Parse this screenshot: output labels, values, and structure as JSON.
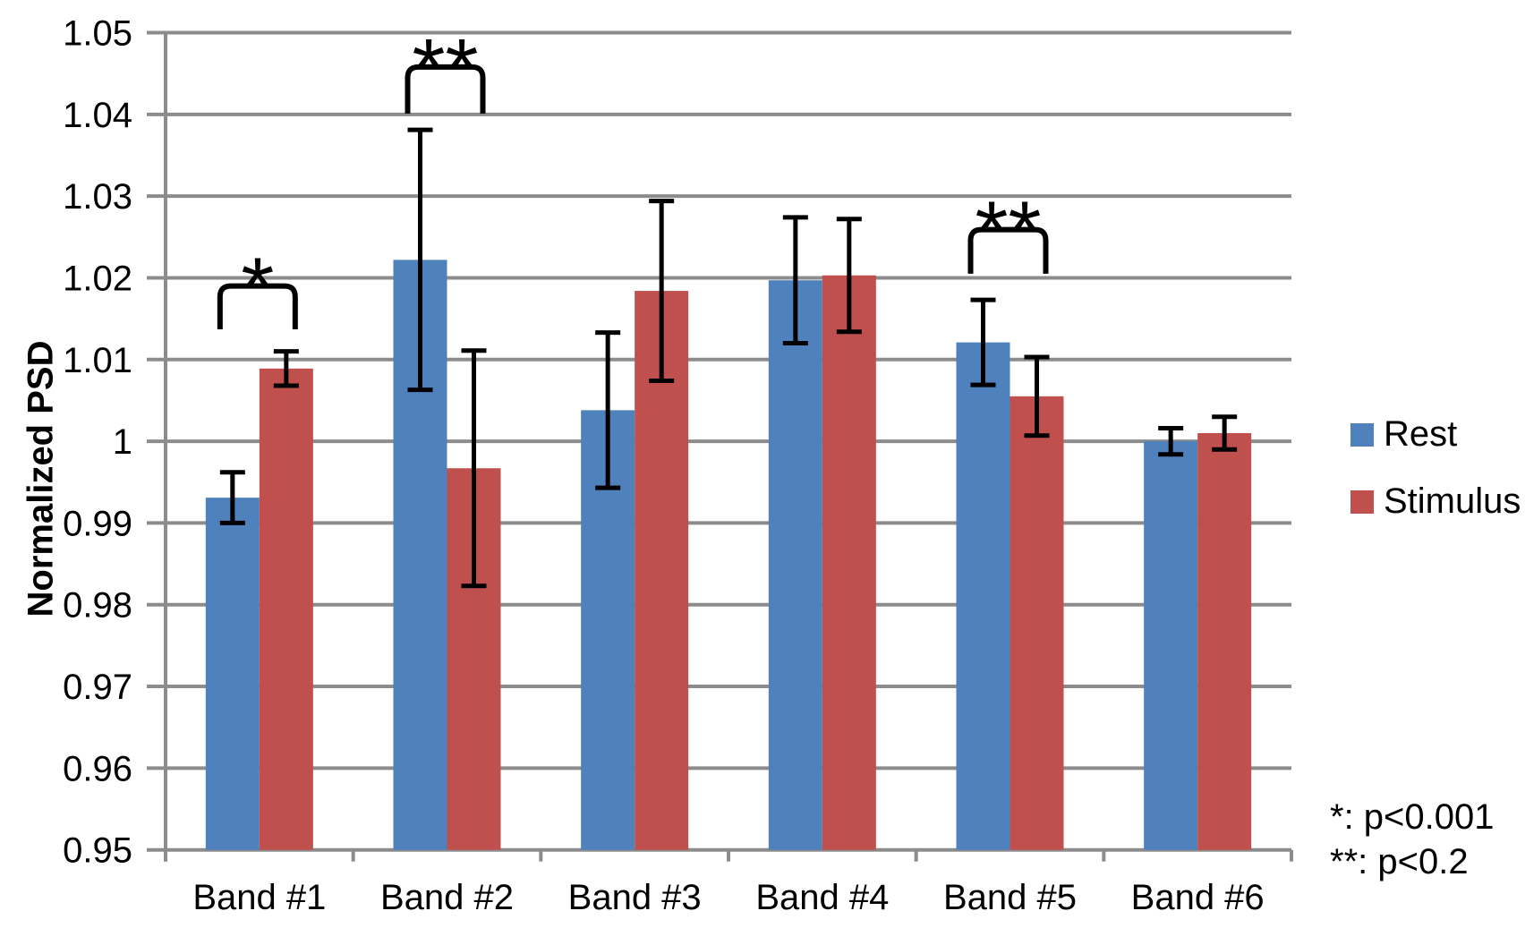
{
  "chart_data": {
    "type": "bar",
    "title": "",
    "ylabel": "Normalized PSD",
    "categories": [
      "Band #1",
      "Band #2",
      "Band #3",
      "Band #4",
      "Band #5",
      "Band #6"
    ],
    "series": [
      {
        "name": "Rest",
        "color": "#4F81BD",
        "values": [
          0.9931,
          1.0222,
          1.0038,
          1.0197,
          1.0121,
          1.0
        ],
        "errors": [
          0.0031,
          0.0159,
          0.0095,
          0.0077,
          0.0052,
          0.0016
        ]
      },
      {
        "name": "Stimulus",
        "color": "#C0504D",
        "values": [
          1.0089,
          0.9967,
          1.0184,
          1.0203,
          1.0055,
          1.001
        ],
        "errors": [
          0.0021,
          0.0144,
          0.011,
          0.0069,
          0.0048,
          0.002
        ]
      }
    ],
    "ylim": [
      0.95,
      1.05
    ],
    "ytick_step": 0.01,
    "grid": true,
    "legend_position": "right",
    "annotations": [
      {
        "category": "Band #1",
        "label": "*",
        "y_top": 1.019,
        "y_bottom": 1.0137
      },
      {
        "category": "Band #2",
        "label": "**",
        "y_top": 1.0458,
        "y_bottom": 1.0401
      },
      {
        "category": "Band #5",
        "label": "**",
        "y_top": 1.0259,
        "y_bottom": 1.0205
      }
    ],
    "footnotes": [
      "*: p<0.001",
      "**: p<0.2"
    ],
    "colors": {
      "grid": "#8C8C8C",
      "axis": "#8C8C8C",
      "error_bar": "#000000",
      "bracket": "#000000",
      "text": "#000000"
    }
  }
}
